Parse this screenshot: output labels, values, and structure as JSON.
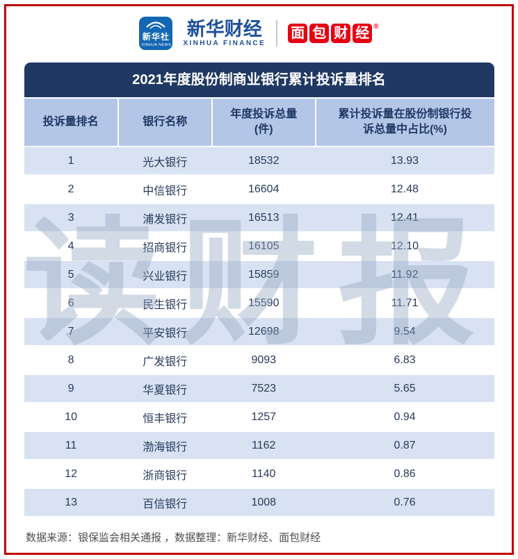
{
  "page": {
    "watermark": "读财报",
    "colors": {
      "frame_red": "#c00000",
      "title_bar_navy": "#1f3864",
      "header_row_blue": "#b4c6e7",
      "stripe_blue": "#d9e2f2",
      "brand_blue": "#1d4f9e",
      "bread_red": "#e60113"
    }
  },
  "header": {
    "xinhua_news": {
      "title": "新华社",
      "subtitle": "XINHUA NEWS"
    },
    "xinhua_finance": {
      "title": "新华财经",
      "subtitle": "XINHUA FINANCE"
    },
    "bread_finance": {
      "title": "面包财经",
      "registered": "®"
    }
  },
  "table": {
    "title": "2021年度股份制商业银行累计投诉量排名",
    "header": {
      "col_rank": "投诉量排名",
      "col_bank": "银行名称",
      "col_total_line1": "年度投诉总量",
      "col_total_line2": "(件)",
      "col_share_line1": "累计投诉量在股份制银行投",
      "col_share_line2": "诉总量中占比(%)"
    },
    "rows": [
      {
        "rank": "1",
        "bank": "光大银行",
        "total": "18532",
        "share": "13.93"
      },
      {
        "rank": "2",
        "bank": "中信银行",
        "total": "16604",
        "share": "12.48"
      },
      {
        "rank": "3",
        "bank": "浦发银行",
        "total": "16513",
        "share": "12.41"
      },
      {
        "rank": "4",
        "bank": "招商银行",
        "total": "16105",
        "share": "12.10"
      },
      {
        "rank": "5",
        "bank": "兴业银行",
        "total": "15859",
        "share": "11.92"
      },
      {
        "rank": "6",
        "bank": "民生银行",
        "total": "15590",
        "share": "11.71"
      },
      {
        "rank": "7",
        "bank": "平安银行",
        "total": "12698",
        "share": "9.54"
      },
      {
        "rank": "8",
        "bank": "广发银行",
        "total": "9093",
        "share": "6.83"
      },
      {
        "rank": "9",
        "bank": "华夏银行",
        "total": "7523",
        "share": "5.65"
      },
      {
        "rank": "10",
        "bank": "恒丰银行",
        "total": "1257",
        "share": "0.94"
      },
      {
        "rank": "11",
        "bank": "渤海银行",
        "total": "1162",
        "share": "0.87"
      },
      {
        "rank": "12",
        "bank": "浙商银行",
        "total": "1140",
        "share": "0.86"
      },
      {
        "rank": "13",
        "bank": "百信银行",
        "total": "1008",
        "share": "0.76"
      }
    ]
  },
  "footer": {
    "text": "数据来源：银保监会相关通报 ，数据整理：新华财经、面包财经"
  },
  "chart_data": {
    "type": "table",
    "title": "2021年度股份制商业银行累计投诉量排名",
    "columns": [
      "投诉量排名",
      "银行名称",
      "年度投诉总量(件)",
      "累计投诉量在股份制银行投诉总量中占比(%)"
    ],
    "rows": [
      [
        1,
        "光大银行",
        18532,
        13.93
      ],
      [
        2,
        "中信银行",
        16604,
        12.48
      ],
      [
        3,
        "浦发银行",
        16513,
        12.41
      ],
      [
        4,
        "招商银行",
        16105,
        12.1
      ],
      [
        5,
        "兴业银行",
        15859,
        11.92
      ],
      [
        6,
        "民生银行",
        15590,
        11.71
      ],
      [
        7,
        "平安银行",
        12698,
        9.54
      ],
      [
        8,
        "广发银行",
        9093,
        6.83
      ],
      [
        9,
        "华夏银行",
        7523,
        5.65
      ],
      [
        10,
        "恒丰银行",
        1257,
        0.94
      ],
      [
        11,
        "渤海银行",
        1162,
        0.87
      ],
      [
        12,
        "浙商银行",
        1140,
        0.86
      ],
      [
        13,
        "百信银行",
        1008,
        0.76
      ]
    ],
    "notes": "数据来源：银保监会相关通报，数据整理：新华财经、面包财经"
  }
}
